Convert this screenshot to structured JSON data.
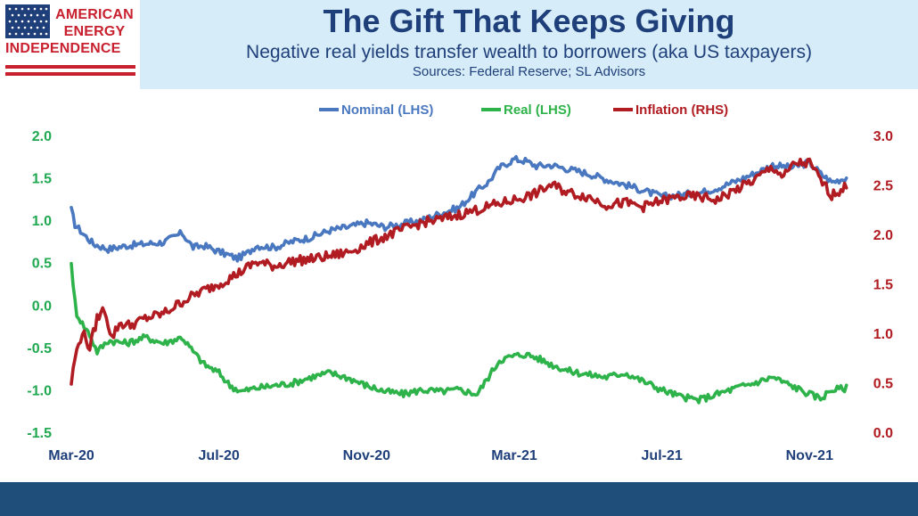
{
  "logo": {
    "line1": "AMERICAN",
    "line2": "ENERGY",
    "line3": "INDEPENDENCE"
  },
  "header": {
    "title": "The Gift That Keeps Giving",
    "subtitle": "Negative real yields transfer wealth to borrowers (aka US taxpayers)",
    "sources": "Sources: Federal Reserve; SL Advisors"
  },
  "colors": {
    "nominal": "#4a78c0",
    "real": "#2db34a",
    "inflation": "#b01c22",
    "header_bg": "#d6ecf8",
    "title": "#1f3f7a",
    "footer": "#1f4e7a",
    "logo_red": "#c8202f"
  },
  "chart_data": {
    "type": "line",
    "title": "",
    "xlabel": "",
    "ylabel": "",
    "y_left_ticks": [
      "2.0",
      "1.5",
      "1.0",
      "0.5",
      "0.0",
      "-0.5",
      "-1.0",
      "-1.5"
    ],
    "y_right_ticks": [
      "3.0",
      "2.5",
      "2.0",
      "1.5",
      "1.0",
      "0.5",
      "0.0"
    ],
    "ylim_left": [
      -1.5,
      2.0
    ],
    "ylim_right": [
      0.0,
      3.0
    ],
    "x_tick_labels": [
      "Mar-20",
      "Jul-20",
      "Nov-20",
      "Mar-21",
      "Jul-21",
      "Nov-21"
    ],
    "x_tick_months": [
      0,
      4,
      8,
      12,
      16,
      20
    ],
    "xlim_months": [
      0,
      21.2
    ],
    "legend_position": "top-center",
    "grid": false,
    "series": [
      {
        "name": "Nominal (LHS)",
        "axis": "left",
        "color": "#4a78c0",
        "x": [
          0,
          0.1,
          0.3,
          0.6,
          1.0,
          1.5,
          2.0,
          2.5,
          3.0,
          3.3,
          3.6,
          4.0,
          4.5,
          4.8,
          5.0,
          5.5,
          6.0,
          6.5,
          7.0,
          7.5,
          8.0,
          8.5,
          9.0,
          9.5,
          10.0,
          10.5,
          11.0,
          11.3,
          11.6,
          12.0,
          12.3,
          12.6,
          13.0,
          13.5,
          14.0,
          14.5,
          15.0,
          15.5,
          16.0,
          16.5,
          17.0,
          17.5,
          18.0,
          18.5,
          19.0,
          19.5,
          20.0,
          20.3,
          20.6,
          21.0
        ],
        "y": [
          1.12,
          0.95,
          0.85,
          0.72,
          0.66,
          0.7,
          0.72,
          0.74,
          0.85,
          0.68,
          0.7,
          0.63,
          0.55,
          0.62,
          0.7,
          0.68,
          0.75,
          0.8,
          0.88,
          0.92,
          0.97,
          0.92,
          0.96,
          1.0,
          1.08,
          1.15,
          1.35,
          1.45,
          1.62,
          1.72,
          1.7,
          1.64,
          1.65,
          1.6,
          1.55,
          1.48,
          1.42,
          1.35,
          1.28,
          1.3,
          1.32,
          1.38,
          1.46,
          1.55,
          1.65,
          1.62,
          1.68,
          1.55,
          1.45,
          1.5
        ]
      },
      {
        "name": "Real (LHS)",
        "axis": "left",
        "color": "#2db34a",
        "x": [
          0,
          0.05,
          0.15,
          0.3,
          0.5,
          0.7,
          1.0,
          1.5,
          2.0,
          2.5,
          3.0,
          3.3,
          3.6,
          4.0,
          4.3,
          4.6,
          5.0,
          5.5,
          6.0,
          6.5,
          7.0,
          7.5,
          8.0,
          8.5,
          9.0,
          9.5,
          10.0,
          10.5,
          11.0,
          11.3,
          11.6,
          12.0,
          12.3,
          12.6,
          13.0,
          13.5,
          14.0,
          14.5,
          15.0,
          15.5,
          16.0,
          16.5,
          17.0,
          17.5,
          18.0,
          18.5,
          19.0,
          19.5,
          20.0,
          20.3,
          20.6,
          21.0
        ],
        "y": [
          0.52,
          0.2,
          -0.1,
          -0.22,
          -0.35,
          -0.55,
          -0.42,
          -0.45,
          -0.38,
          -0.45,
          -0.38,
          -0.55,
          -0.7,
          -0.8,
          -0.95,
          -1.02,
          -0.98,
          -0.95,
          -0.92,
          -0.85,
          -0.8,
          -0.86,
          -0.95,
          -1.02,
          -1.05,
          -1.0,
          -1.02,
          -1.0,
          -1.05,
          -0.85,
          -0.65,
          -0.6,
          -0.58,
          -0.62,
          -0.7,
          -0.78,
          -0.82,
          -0.85,
          -0.8,
          -0.9,
          -1.0,
          -1.08,
          -1.12,
          -1.05,
          -0.98,
          -0.92,
          -0.85,
          -0.95,
          -1.05,
          -1.1,
          -1.0,
          -0.98
        ]
      },
      {
        "name": "Inflation (RHS)",
        "axis": "right",
        "color": "#b01c22",
        "x": [
          0,
          0.1,
          0.3,
          0.5,
          0.7,
          0.9,
          1.1,
          1.3,
          1.6,
          2.0,
          2.5,
          3.0,
          3.5,
          4.0,
          4.5,
          5.0,
          5.5,
          6.0,
          6.5,
          7.0,
          7.5,
          8.0,
          8.5,
          9.0,
          9.5,
          10.0,
          10.5,
          11.0,
          11.5,
          12.0,
          12.5,
          13.0,
          13.5,
          14.0,
          14.5,
          15.0,
          15.5,
          16.0,
          16.5,
          17.0,
          17.5,
          18.0,
          18.5,
          19.0,
          19.3,
          19.6,
          20.0,
          20.3,
          20.6,
          21.0
        ],
        "y": [
          0.5,
          0.75,
          1.02,
          0.85,
          1.15,
          1.25,
          0.95,
          1.1,
          1.08,
          1.15,
          1.2,
          1.32,
          1.42,
          1.5,
          1.6,
          1.72,
          1.68,
          1.73,
          1.75,
          1.78,
          1.82,
          1.9,
          1.98,
          2.05,
          2.12,
          2.15,
          2.2,
          2.25,
          2.3,
          2.35,
          2.4,
          2.5,
          2.42,
          2.38,
          2.3,
          2.32,
          2.28,
          2.34,
          2.38,
          2.38,
          2.35,
          2.45,
          2.55,
          2.68,
          2.58,
          2.72,
          2.72,
          2.55,
          2.4,
          2.48
        ]
      }
    ]
  }
}
